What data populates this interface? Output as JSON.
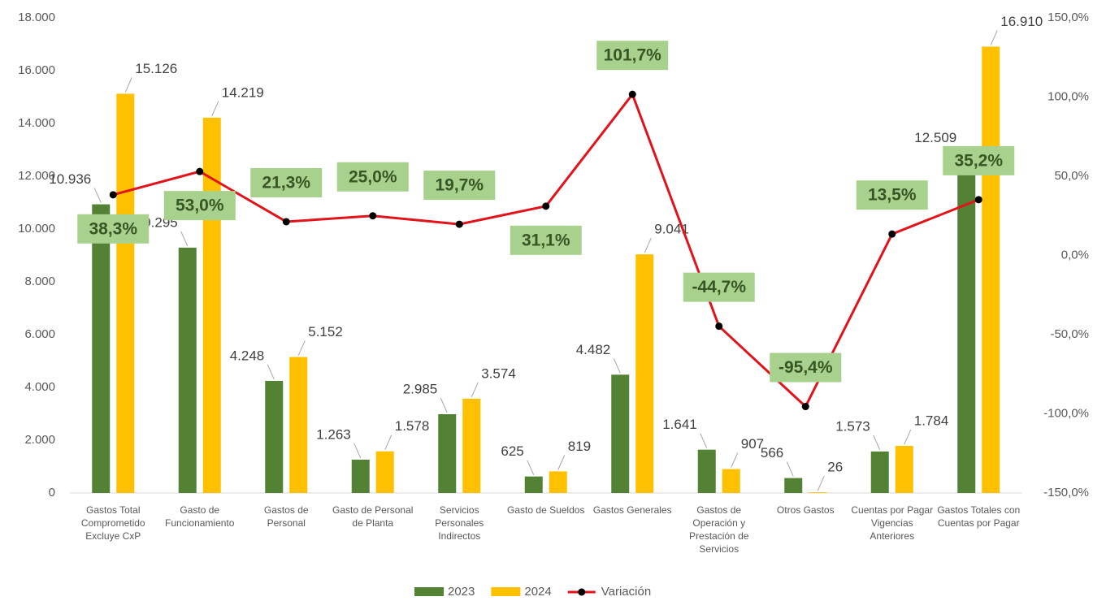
{
  "chart_data": {
    "type": "bar",
    "categories": [
      "Gastos Total Comprometido Excluye CxP",
      "Gasto de Funcionamiento",
      "Gastos de Personal",
      "Gasto de Personal de Planta",
      "Servicios Personales Indirectos",
      "Gasto de Sueldos",
      "Gastos Generales",
      "Gastos de Operación y Prestación de Servicios",
      "Otros Gastos",
      "Cuentas por Pagar Vigencias Anteriores",
      "Gastos Totales con Cuentas por Pagar"
    ],
    "series": [
      {
        "name": "2023",
        "color": "#548235",
        "values": [
          10936,
          9295,
          4248,
          1263,
          2985,
          625,
          4482,
          1641,
          566,
          1573,
          12509
        ],
        "value_labels": [
          "10.936",
          "9.295",
          "4.248",
          "1.263",
          "2.985",
          "625",
          "4.482",
          "1.641",
          "566",
          "1.573",
          "12.509"
        ]
      },
      {
        "name": "2024",
        "color": "#ffc000",
        "values": [
          15126,
          14219,
          5152,
          1578,
          3574,
          819,
          9041,
          907,
          26,
          1784,
          16910
        ],
        "value_labels": [
          "15.126",
          "14.219",
          "5.152",
          "1.578",
          "3.574",
          "819",
          "9.041",
          "907",
          "26",
          "1.784",
          "16.910"
        ]
      },
      {
        "name": "Variación",
        "type": "line",
        "axis": "y2",
        "color": "#e2131b",
        "marker_color": "#000000",
        "values": [
          38.3,
          53.0,
          21.3,
          25.0,
          19.7,
          31.1,
          101.7,
          -44.7,
          -95.4,
          13.5,
          35.2
        ],
        "value_labels": [
          "38,3%",
          "53,0%",
          "21,3%",
          "25,0%",
          "19,7%",
          "31,1%",
          "101,7%",
          "-44,7%",
          "-95,4%",
          "13,5%",
          "35,2%"
        ]
      }
    ],
    "ylim": [
      0,
      18000
    ],
    "yticks": [
      0,
      {
        "value": 2000,
        "label": "2.000"
      },
      {
        "value": 4000,
        "label": "4.000"
      },
      {
        "value": 6000,
        "label": "6.000"
      },
      {
        "value": 8000,
        "label": "8.000"
      },
      {
        "value": 10000,
        "label": "10.000"
      },
      {
        "value": 12000,
        "label": "12.000"
      },
      {
        "value": 14000,
        "label": "14.000"
      },
      {
        "value": 16000,
        "label": "16.000"
      },
      {
        "value": 18000,
        "label": "18.000"
      }
    ],
    "y2lim": [
      -150,
      150
    ],
    "y2ticks": [
      {
        "value": -150,
        "label": "-150,0%"
      },
      {
        "value": -100,
        "label": "-100,0%"
      },
      {
        "value": -50,
        "label": "-50,0%"
      },
      {
        "value": 0,
        "label": "0,0%"
      },
      {
        "value": 50,
        "label": "50,0%"
      },
      {
        "value": 100,
        "label": "100,0%"
      },
      {
        "value": 150,
        "label": "150,0%"
      }
    ],
    "grid": false,
    "legend": "bottom"
  }
}
